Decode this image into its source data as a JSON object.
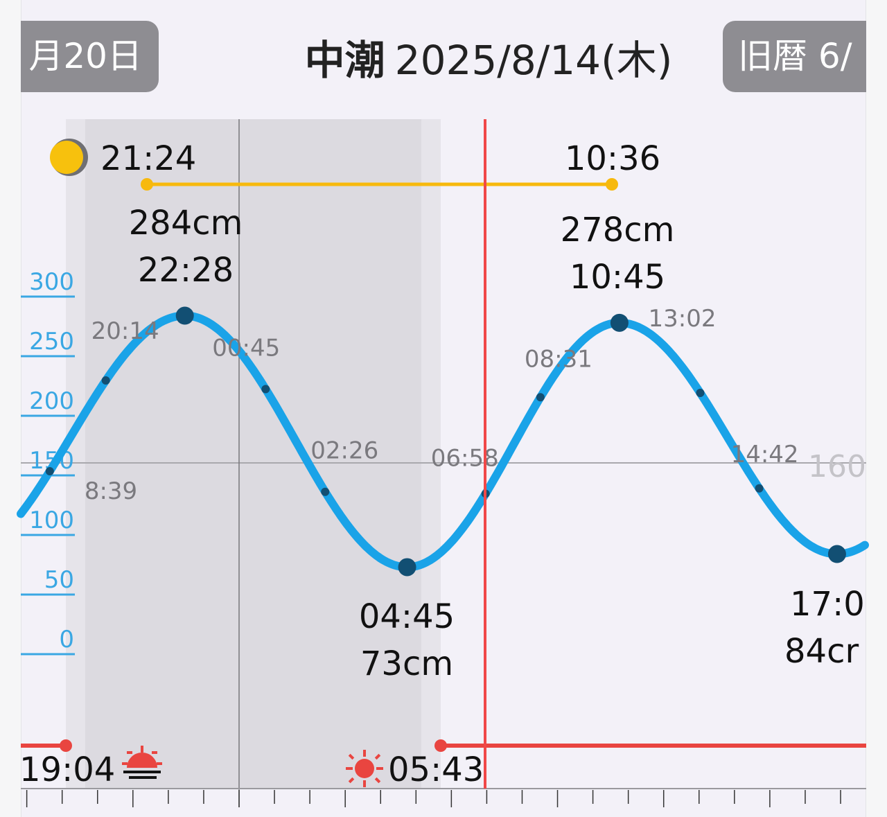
{
  "header": {
    "prev_button": "月20日",
    "tide_type": "中潮",
    "date": "2025/8/14(木)",
    "next_button": "旧暦 6/"
  },
  "colors": {
    "tide_curve": "#1aa3e8",
    "extreme_dot": "#124f73",
    "moon_line": "#f7b90d",
    "sun_line": "#e94540",
    "now_line": "#f04848",
    "axis_text": "#3aa7e3",
    "night_shade": "#dcdae0"
  },
  "moon": {
    "icon": "moon-phase-icon",
    "set_time": "21:24",
    "rise_time": "10:36"
  },
  "sun": {
    "sunset_time": "19:04",
    "sunset_icon": "sunset-icon",
    "sunrise_time": "05:43",
    "sunrise_icon": "sunrise-icon"
  },
  "chart_data": {
    "type": "line",
    "ylabel": "",
    "yticks": [
      "0",
      "50",
      "100",
      "150",
      "200",
      "250",
      "300"
    ],
    "ylim": [
      0,
      300
    ],
    "reference_level_label": "160",
    "extremes": [
      {
        "kind": "high",
        "time": "22:28",
        "level": 284,
        "level_label": "284cm"
      },
      {
        "kind": "low",
        "time": "04:45",
        "level": 73,
        "level_label": "73cm"
      },
      {
        "kind": "high",
        "time": "10:45",
        "level": 278,
        "level_label": "278cm"
      },
      {
        "kind": "low",
        "time": "17:0",
        "level": 84,
        "level_label": "84cr"
      }
    ],
    "intermediate_times": [
      "8:39",
      "20:14",
      "00:45",
      "02:26",
      "06:58",
      "08:31",
      "13:02",
      "14:42"
    ],
    "current_time_marker": "now"
  }
}
